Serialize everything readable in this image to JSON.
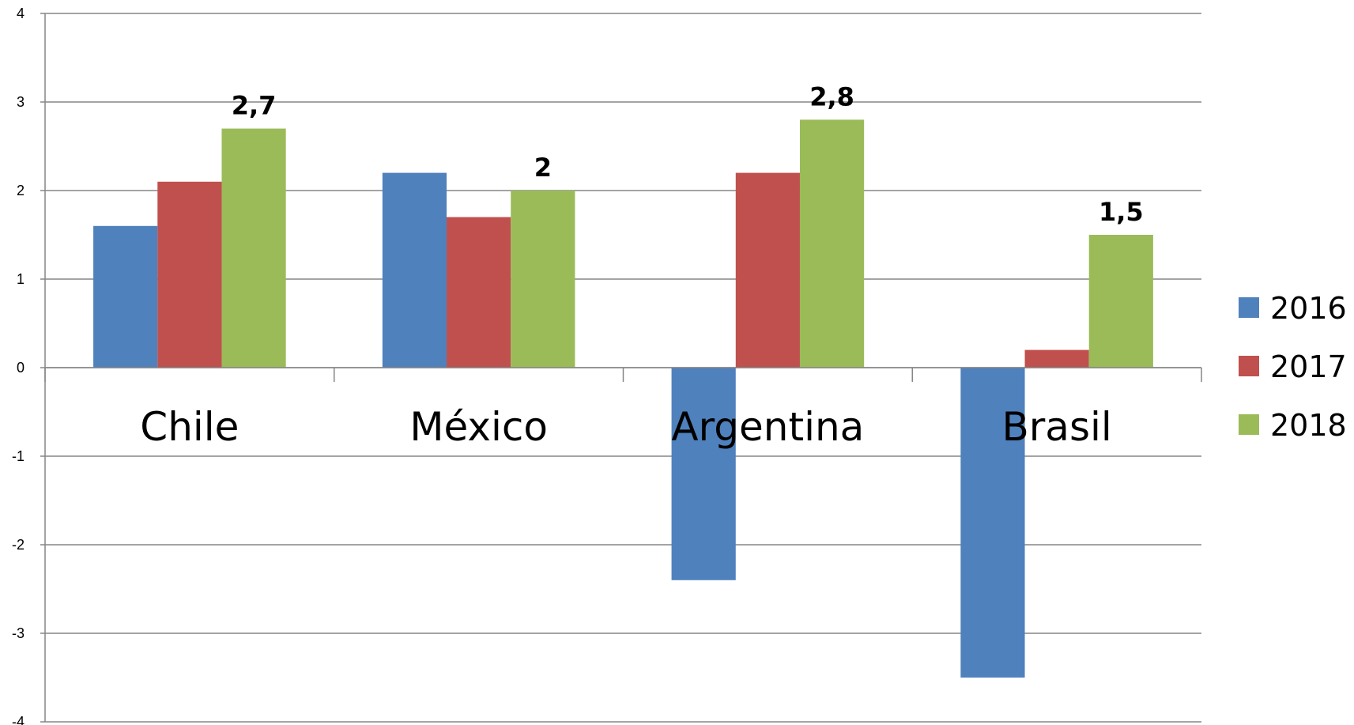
{
  "chart_data": {
    "type": "bar",
    "title": "",
    "xlabel": "",
    "ylabel": "",
    "categories": [
      "Chile",
      "México",
      "Argentina",
      "Brasil"
    ],
    "series": [
      {
        "name": "2016",
        "color": "#4F81BD",
        "values": [
          1.6,
          2.2,
          -2.4,
          -3.5
        ]
      },
      {
        "name": "2017",
        "color": "#C0504D",
        "values": [
          2.1,
          1.7,
          2.2,
          0.2
        ]
      },
      {
        "name": "2018",
        "color": "#9BBB59",
        "values": [
          2.7,
          2.0,
          2.8,
          1.5
        ]
      }
    ],
    "data_labels": {
      "series": "2018",
      "texts": [
        "2,7",
        "2",
        "2,8",
        "1,5"
      ]
    },
    "yticks": [
      "-4",
      "-3",
      "-2",
      "-1",
      "0",
      "1",
      "2",
      "3",
      "4"
    ],
    "ylim": [
      -4,
      4
    ],
    "grid": true,
    "legend_position": "right",
    "gridline_color": "#868686"
  }
}
